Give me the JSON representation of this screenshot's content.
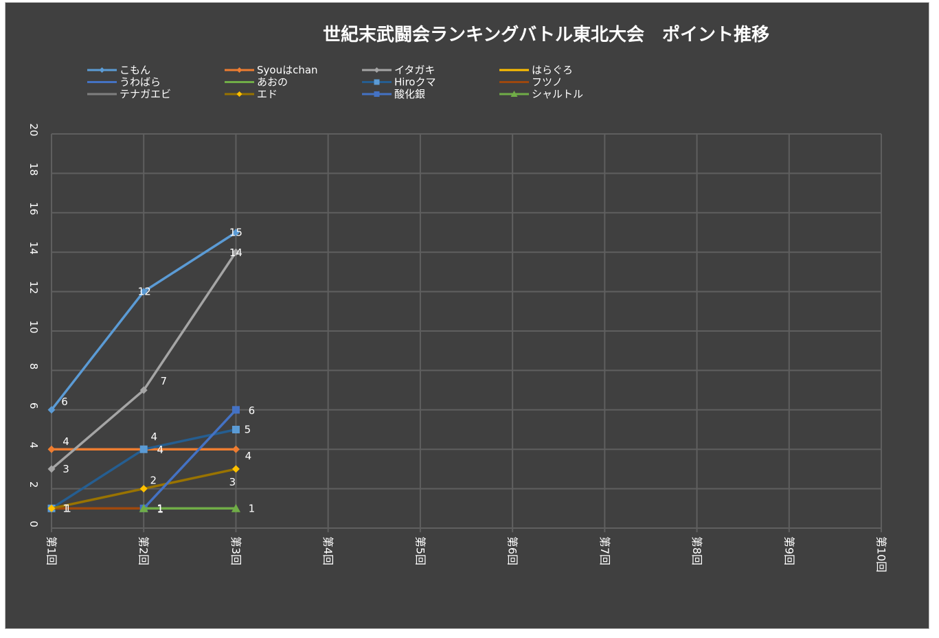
{
  "chart_data": {
    "type": "line",
    "title": "世紀末武闘会ランキングバトル東北大会　ポイント推移",
    "categories": [
      "第1回",
      "第2回",
      "第3回",
      "第4回",
      "第5回",
      "第6回",
      "第7回",
      "第8回",
      "第9回",
      "第10回"
    ],
    "ylim": [
      0,
      20
    ],
    "y_ticks": [
      0,
      2,
      4,
      6,
      8,
      10,
      12,
      14,
      16,
      18,
      20
    ],
    "grid": true,
    "legend_position": "top",
    "series": [
      {
        "name": "こもん",
        "color": "#5B9BD5",
        "marker": "diamond",
        "marker_color": "#5B9BD5",
        "show_labels": true,
        "values": [
          6,
          12,
          15,
          null,
          null,
          null,
          null,
          null,
          null,
          null
        ]
      },
      {
        "name": "Syouはchan",
        "color": "#ED7D31",
        "marker": "diamond",
        "marker_color": "#ED7D31",
        "show_labels": true,
        "values": [
          4,
          4,
          4,
          null,
          null,
          null,
          null,
          null,
          null,
          null
        ]
      },
      {
        "name": "イタガキ",
        "color": "#A5A5A5",
        "marker": "diamond",
        "marker_color": "#A5A5A5",
        "show_labels": true,
        "values": [
          3,
          7,
          14,
          null,
          null,
          null,
          null,
          null,
          null,
          null
        ]
      },
      {
        "name": "はらぐろ",
        "color": "#FFC000",
        "marker": "none",
        "marker_color": "#FFC000",
        "show_labels": false,
        "values": [
          null,
          null,
          null,
          null,
          null,
          null,
          null,
          null,
          null,
          null
        ]
      },
      {
        "name": "うわばら",
        "color": "#4472C4",
        "marker": "none",
        "marker_color": "#4472C4",
        "show_labels": false,
        "values": [
          null,
          null,
          null,
          null,
          null,
          null,
          null,
          null,
          null,
          null
        ]
      },
      {
        "name": "あおの",
        "color": "#70AD47",
        "marker": "none",
        "marker_color": "#70AD47",
        "show_labels": false,
        "values": [
          null,
          null,
          null,
          null,
          null,
          null,
          null,
          null,
          null,
          null
        ]
      },
      {
        "name": "Hiroクマ",
        "color": "#255E91",
        "marker": "square",
        "marker_color": "#5B9BD5",
        "show_labels": true,
        "values": [
          1,
          4,
          5,
          null,
          null,
          null,
          null,
          null,
          null,
          null
        ]
      },
      {
        "name": "フツノ",
        "color": "#9E480E",
        "marker": "none",
        "marker_color": "#9E480E",
        "show_labels": false,
        "values": [
          1,
          1,
          null,
          null,
          null,
          null,
          null,
          null,
          null,
          null
        ]
      },
      {
        "name": "テナガエビ",
        "color": "#7F7F7F",
        "marker": "none",
        "marker_color": "#7F7F7F",
        "show_labels": false,
        "values": [
          null,
          null,
          null,
          null,
          null,
          null,
          null,
          null,
          null,
          null
        ]
      },
      {
        "name": "エド",
        "color": "#997300",
        "marker": "diamond",
        "marker_color": "#FFC000",
        "show_labels": true,
        "values": [
          1,
          2,
          3,
          null,
          null,
          null,
          null,
          null,
          null,
          null
        ]
      },
      {
        "name": "酸化銀",
        "color": "#4472C4",
        "marker": "square",
        "marker_color": "#4472C4",
        "show_labels": true,
        "values": [
          null,
          1,
          6,
          null,
          null,
          null,
          null,
          null,
          null,
          null
        ]
      },
      {
        "name": "シャルトル",
        "color": "#70AD47",
        "marker": "triangle",
        "marker_color": "#70AD47",
        "show_labels": true,
        "values": [
          null,
          1,
          1,
          null,
          null,
          null,
          null,
          null,
          null,
          null
        ]
      }
    ]
  },
  "style": {
    "background": "#404040",
    "grid_color": "#5F5F5F",
    "text_color": "#FFFFFF",
    "border_color": "#BFBFBF"
  }
}
